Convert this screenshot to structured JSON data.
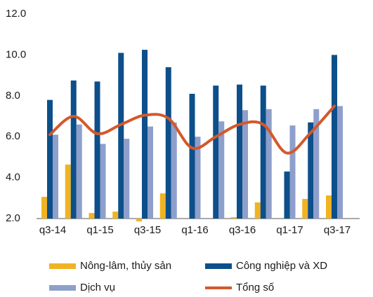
{
  "chart_data": {
    "type": "bar",
    "categories": [
      "q3-14",
      null,
      "q1-15",
      null,
      "q3-15",
      null,
      "q1-16",
      null,
      "q3-16",
      null,
      "q1-17",
      null,
      "q3-17"
    ],
    "series": [
      {
        "name": "Nông-lâm, thủy sản",
        "color": "#f0b323",
        "values": [
          3.06,
          4.64,
          2.27,
          2.34,
          1.86,
          3.23,
          2.0,
          2.0,
          2.07,
          2.79,
          2.0,
          2.96,
          3.13
        ]
      },
      {
        "name": "Công nghiệp và XD",
        "color": "#0c4f8a",
        "values": [
          7.8,
          8.75,
          8.7,
          10.1,
          10.25,
          9.4,
          8.1,
          8.5,
          8.55,
          8.5,
          4.3,
          6.7,
          10.0
        ]
      },
      {
        "name": "Dịch vụ",
        "color": "#8e9fcb",
        "values": [
          6.1,
          6.6,
          5.65,
          5.9,
          6.5,
          6.7,
          6.0,
          6.75,
          7.3,
          7.35,
          6.55,
          7.35,
          7.5
        ]
      },
      {
        "name": "Tổng số",
        "color": "#d4582a",
        "type": "line",
        "values": [
          6.1,
          7.0,
          6.15,
          6.6,
          7.05,
          6.9,
          5.45,
          6.0,
          6.6,
          6.6,
          5.2,
          6.2,
          7.5
        ]
      }
    ],
    "ylim": [
      2,
      12
    ],
    "yticks": [
      {
        "value": 2,
        "label": "2.0"
      },
      {
        "value": 4,
        "label": "4.0"
      },
      {
        "value": 6,
        "label": "6.0"
      },
      {
        "value": 8,
        "label": "8.0"
      },
      {
        "value": 10,
        "label": "10.0"
      },
      {
        "value": 12,
        "label": "12.0"
      }
    ]
  }
}
